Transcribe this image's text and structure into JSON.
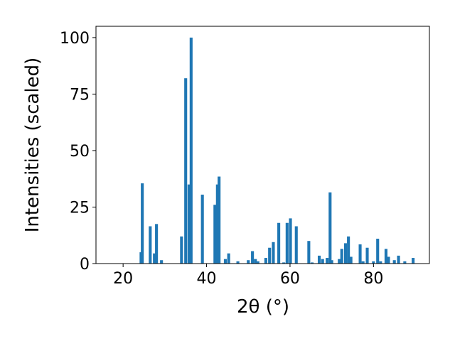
{
  "chart_data": {
    "type": "bar",
    "x_label": "2θ (°)",
    "y_label": "Intensities (scaled)",
    "color": "#1f77b4",
    "bar_width": 0.7,
    "x": [
      24.3,
      24.6,
      26.5,
      27.5,
      28,
      29.2,
      34,
      35,
      35.8,
      36.3,
      39,
      42,
      42.6,
      43,
      44.5,
      45.3,
      47.5,
      50,
      51,
      51.7,
      52.3,
      54.2,
      55.1,
      56,
      57.3,
      58.5,
      59.3,
      60.1,
      61.5,
      64.5,
      65.3,
      67,
      67.8,
      68.9,
      69.6,
      70,
      71.8,
      72.4,
      73.3,
      74,
      74.6,
      76.8,
      77.5,
      78.5,
      80,
      81,
      81.7,
      83,
      83.6,
      85,
      86,
      87.5,
      89.5
    ],
    "values": [
      5,
      35.5,
      16.5,
      4.5,
      17.5,
      1.5,
      12,
      82,
      35,
      100,
      30.5,
      26,
      35,
      38.5,
      2,
      4.5,
      1,
      1.5,
      5.5,
      2,
      1,
      2.5,
      7,
      9.5,
      18,
      0.5,
      18,
      20,
      16.5,
      10,
      0.5,
      3.5,
      2,
      2.5,
      31.5,
      1.5,
      2,
      6.5,
      9,
      12,
      3,
      8.5,
      1,
      7,
      1,
      11,
      1,
      6.5,
      3,
      1.5,
      3.5,
      1,
      2.5
    ],
    "xlim": [
      13.5,
      93.4
    ],
    "ylim": [
      0,
      105
    ],
    "xticks": [
      20,
      40,
      60,
      80
    ],
    "yticks": [
      0,
      25,
      50,
      75,
      100
    ]
  }
}
